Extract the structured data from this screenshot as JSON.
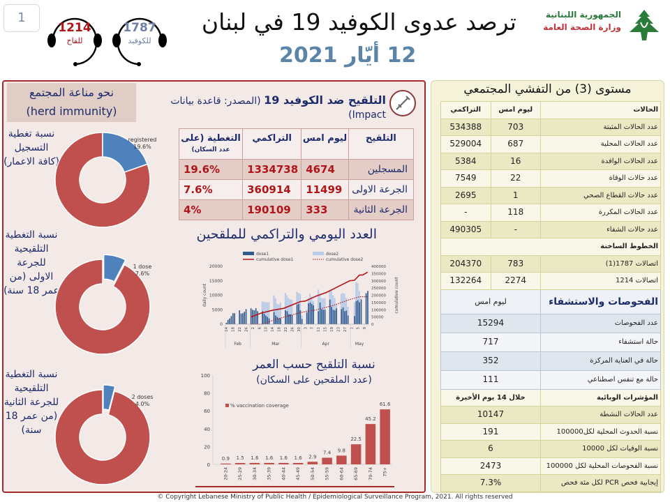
{
  "header": {
    "page_number": "1",
    "title": "ترصد عدوى الكوفيد 19 في لبنان",
    "date": "12 أيّار 2021",
    "republic": "الجمهورية اللبنانية",
    "ministry": "وزارة الصحة العامة",
    "hotline_vaccine": {
      "number": "1214",
      "label": "للقاح",
      "color": "#b0151a"
    },
    "hotline_covid": {
      "number": "1787",
      "label": "للكوفيد",
      "color": "#6f7fa6"
    }
  },
  "left": {
    "herd_title": "نحو مناعة المجتمع",
    "herd_subtitle": "(herd immunity)",
    "donuts": [
      {
        "label": "نسبة تغطية التسجيل (كافة الاعمار)",
        "slice_label": "registered",
        "value_text": "19.6%",
        "value": 19.6
      },
      {
        "label": "نسبة التغطية التلقيحية للجرعة الاولى (من عمر 18 سنة)",
        "slice_label": "1 dose",
        "value_text": "7.6%",
        "value": 7.6
      },
      {
        "label": "نسبة التغطية التلقيحية للجرعة الثانية (من عمر 18 سنة)",
        "slice_label": "2 doses",
        "value_text": "4.0%",
        "value": 4.0
      }
    ],
    "colors": {
      "covered": "#4f81bd",
      "rest": "#c0504d"
    }
  },
  "vaccination": {
    "title": "التلقيح ضد الكوفيد 19",
    "source": "(المصدر: قاعدة بيانات Impact)",
    "columns": [
      "التلقيح",
      "ليوم امس",
      "التراكمي",
      "التغطية (على",
      "عدد السكان)"
    ],
    "rows": [
      {
        "label": "المسجلين",
        "yesterday": "4674",
        "cumulative": "1334738",
        "coverage": "19.6%"
      },
      {
        "label": "الجرعة الاولى",
        "yesterday": "11499",
        "cumulative": "360914",
        "coverage": "7.6%"
      },
      {
        "label": "الجرعة الثانية",
        "yesterday": "333",
        "cumulative": "190109",
        "coverage": "4%"
      }
    ]
  },
  "chart_data": [
    {
      "type": "bar",
      "title": "العدد اليومي والتراكمي للملقحين",
      "ylabel": "daily count",
      "y2label": "cumulative count",
      "ylim": [
        0,
        20000
      ],
      "yticks": [
        0,
        5000,
        10000,
        15000,
        20000
      ],
      "y2lim": [
        0,
        400000
      ],
      "y2ticks": [
        0,
        50000,
        100000,
        150000,
        200000,
        250000,
        300000,
        350000,
        400000
      ],
      "start_date": "2021-02-14",
      "legend": [
        "dose1",
        "dose2",
        "cumulative dose1",
        "cumulative dose2"
      ],
      "legend_position": "top",
      "xtick_labels": [
        "14",
        "18",
        "22",
        "26",
        "2",
        "6",
        "10",
        "14",
        "18",
        "22",
        "26",
        "30",
        "3",
        "7",
        "11",
        "15",
        "19",
        "23",
        "27",
        "1",
        "5",
        "9"
      ],
      "month_labels": [
        "Feb",
        "Mar",
        "Apr",
        "May"
      ],
      "dose1": [
        500,
        1500,
        2000,
        2800,
        3800,
        3800,
        0,
        0,
        4800,
        3700,
        3800,
        4300,
        5200,
        0,
        0,
        5500,
        5000,
        4800,
        5500,
        4500,
        0,
        0,
        4500,
        3600,
        3000,
        2500,
        2000,
        0,
        0,
        4200,
        3000,
        2500,
        2000,
        2000,
        0,
        0,
        4800,
        4500,
        3500,
        3400,
        3200,
        0,
        0,
        6800,
        7000,
        4800,
        1800,
        0,
        0,
        4000,
        7200,
        7500,
        7000,
        6500,
        0,
        0,
        4500,
        7500,
        5200,
        5000,
        5000,
        0,
        0,
        8500,
        6000,
        5000,
        4800,
        5500,
        0,
        0,
        5200,
        5800,
        4500,
        4700,
        3000,
        0,
        0,
        0,
        2800,
        8000,
        8300,
        7600,
        8600,
        0,
        0,
        10700,
        11500
      ],
      "dose2": [
        0,
        0,
        0,
        0,
        0,
        0,
        0,
        0,
        0,
        0,
        0,
        0,
        0,
        0,
        0,
        0,
        0,
        0,
        0,
        0,
        0,
        0,
        7800,
        7800,
        7600,
        7600,
        7600,
        0,
        0,
        10000,
        9000,
        7000,
        6800,
        7500,
        0,
        0,
        10800,
        10000,
        9000,
        8500,
        8500,
        0,
        0,
        11200,
        10800,
        10500,
        3000,
        0,
        0,
        5000,
        9000,
        10500,
        9500,
        8000,
        0,
        0,
        12000,
        10500,
        9000,
        9000,
        9000,
        0,
        0,
        11500,
        11500,
        10000,
        9000,
        7000,
        0,
        0,
        10500,
        10800,
        10500,
        9000,
        6000,
        0,
        0,
        0,
        7500,
        14500,
        14200,
        11500,
        0,
        0,
        0,
        0,
        0
      ],
      "cumulative_dose1": [
        [
          "2021-03-01",
          50000
        ],
        [
          "2021-03-07",
          76000
        ],
        [
          "2021-03-14",
          96000
        ],
        [
          "2021-03-21",
          110000
        ],
        [
          "2021-03-31",
          156000
        ],
        [
          "2021-04-03",
          160000
        ],
        [
          "2021-04-10",
          196000
        ],
        [
          "2021-04-16",
          220000
        ],
        [
          "2021-04-23",
          260000
        ],
        [
          "2021-04-30",
          300000
        ],
        [
          "2021-05-03",
          304000
        ],
        [
          "2021-05-06",
          340000
        ],
        [
          "2021-05-08",
          340000
        ],
        [
          "2021-05-11",
          360000
        ]
      ],
      "cumulative_dose2": [
        [
          "2021-03-01",
          0
        ],
        [
          "2021-03-08",
          0
        ],
        [
          "2021-03-15",
          30000
        ],
        [
          "2021-03-31",
          80000
        ],
        [
          "2021-04-10",
          100000
        ],
        [
          "2021-04-20",
          130000
        ],
        [
          "2021-04-30",
          170000
        ],
        [
          "2021-05-06",
          190000
        ],
        [
          "2021-05-11",
          190000
        ]
      ],
      "colors": {
        "dose1": "#2f5a8f",
        "dose2": "#b9cbe6",
        "cumulative": "#b0151a"
      }
    },
    {
      "type": "bar",
      "title": "نسبة التلقيح حسب العمر",
      "subtitle": "(عدد الملقحين على السكان)",
      "legend": "% vaccination coverage",
      "categories": [
        "20-24",
        "25-29",
        "30-34",
        "35-39",
        "40-44",
        "45-49",
        "50-54",
        "55-59",
        "60-64",
        "65-69",
        "70-74",
        "75+"
      ],
      "values": [
        0.9,
        1.5,
        1.6,
        1.6,
        1.6,
        1.6,
        2.9,
        7.4,
        9.8,
        22.5,
        45.2,
        61.6
      ],
      "ylim": [
        0,
        100
      ],
      "yticks": [
        0,
        20,
        40,
        60,
        80,
        100
      ],
      "color": "#c0504d"
    }
  ],
  "community": {
    "title": "مستوى (3) من التفشي المجتمعي",
    "cases_header": {
      "label": "الحالات",
      "yesterday": "ليوم امس",
      "cumulative": "التراكمي"
    },
    "cases": [
      {
        "label": "عدد الحالات المثبتة",
        "yesterday": "703",
        "cumulative": "534388"
      },
      {
        "label": "عدد الحالات المحلية",
        "yesterday": "687",
        "cumulative": "529004"
      },
      {
        "label": "عدد الحالات الوافدة",
        "yesterday": "16",
        "cumulative": "5384"
      },
      {
        "label": "عدد حالات الوفاة",
        "yesterday": "22",
        "cumulative": "7549"
      },
      {
        "label": "عدد حالات القطاع الصحي",
        "yesterday": "1",
        "cumulative": "2695"
      },
      {
        "label": "عدد الحالات المكررة",
        "yesterday": "118",
        "cumulative": "-"
      },
      {
        "label": "عدد حالات الشفاء",
        "yesterday": "-",
        "cumulative": "490305"
      }
    ],
    "hotlines_header": "الخطوط الساخنة",
    "hotlines": [
      {
        "label": "اتصالات 1787(1)",
        "yesterday": "783",
        "cumulative": "204370"
      },
      {
        "label": "اتصالات 1214",
        "yesterday": "2274",
        "cumulative": "132264"
      }
    ],
    "tests_header": {
      "label": "الفحوصات والاستشفاء",
      "yesterday": "ليوم امس"
    },
    "tests": [
      {
        "label": "عدد الفحوصات",
        "value": "15294"
      },
      {
        "label": "حالة استشفاء",
        "value": "717"
      },
      {
        "label": "حالة في العناية المركزة",
        "value": "352"
      },
      {
        "label": "حالة مع تنفس اصطناعي",
        "value": "111"
      }
    ],
    "indicators_header": {
      "label": "المؤشرات الوبائية",
      "period": "خلال 14 يوم الأخيرة"
    },
    "indicators": [
      {
        "label": "عدد الحالات النشطة",
        "value": "10147"
      },
      {
        "label": "نسبة الحدوث المحلية لكل100000",
        "value": "191"
      },
      {
        "label": "نسبة الوفيات لكل 10000",
        "value": "6"
      },
      {
        "label": "نسبة الفحوصات المحلية لكل 100000",
        "value": "2473"
      },
      {
        "label": "إيجابية فحص PCR لكل مئة فحص",
        "value": "7.3%"
      }
    ]
  },
  "footer": "© Copyright Lebanese Ministry of Public Health / Epidemiological Surveillance Program, 2021. All rights reserved"
}
